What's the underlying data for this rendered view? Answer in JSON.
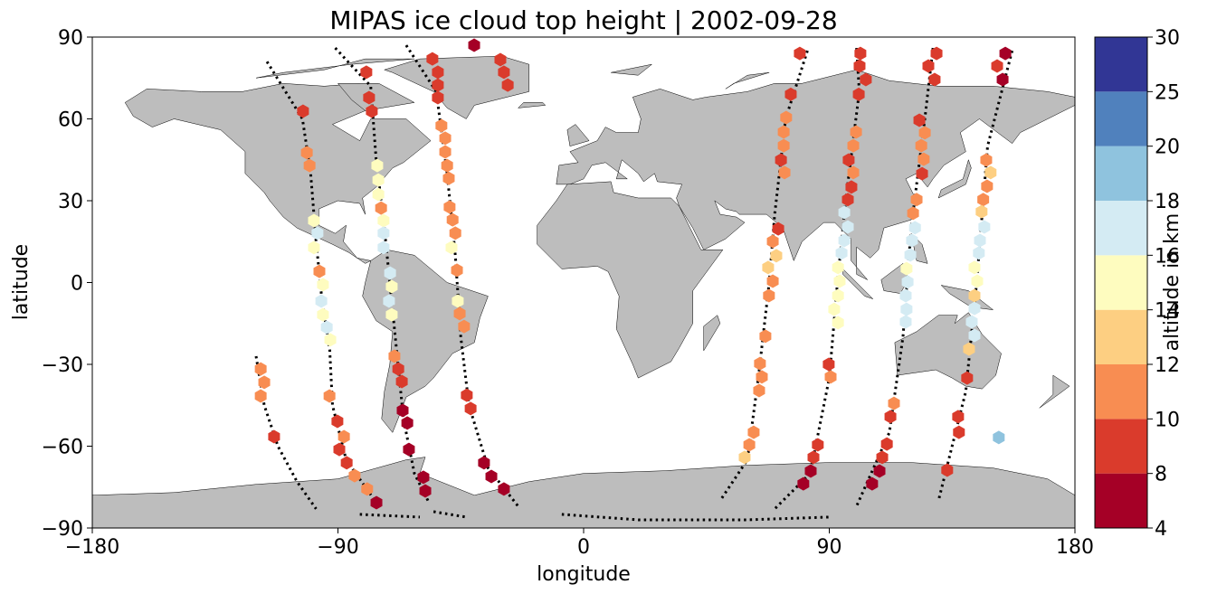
{
  "chart_data": {
    "type": "scatter",
    "title": "MIPAS ice cloud top height | 2002-09-28",
    "x_label": "longitude",
    "y_label": "latitude",
    "xlim": [
      -180,
      180
    ],
    "ylim": [
      -90,
      90
    ],
    "xticks": [
      {
        "value": -180,
        "label": "−180"
      },
      {
        "value": -90,
        "label": "−90"
      },
      0,
      90,
      180
    ],
    "yticks": [
      {
        "value": -90,
        "label": "−90"
      },
      {
        "value": -60,
        "label": "−60"
      },
      {
        "value": -30,
        "label": "−30"
      },
      0,
      30,
      60,
      90
    ],
    "colorbar": {
      "label": "altitude in km",
      "boundaries": [
        4,
        8,
        10,
        12,
        14,
        16,
        18,
        20,
        25,
        30
      ],
      "colors": [
        "#a50026",
        "#da3b2c",
        "#f88d52",
        "#fdcf82",
        "#fefcbf",
        "#d4ebf3",
        "#8fc3de",
        "#5081bd",
        "#313695"
      ]
    },
    "tracks": [
      {
        "x": [
          -120,
          -117,
          -112,
          -105,
          -98
        ],
        "y": [
          -27,
          -45,
          -60,
          -73,
          -83
        ]
      },
      {
        "x": [
          -116,
          -103,
          -100,
          -98,
          -96,
          -93,
          -92,
          -87,
          -75
        ],
        "y": [
          81,
          60,
          40,
          15,
          -5,
          -25,
          -45,
          -65,
          -82
        ]
      },
      {
        "x": [
          -91,
          -78,
          -76,
          -73,
          -71,
          -68,
          -66,
          -62,
          -57
        ],
        "y": [
          86,
          72,
          45,
          20,
          0,
          -30,
          -50,
          -70,
          -80
        ]
      },
      {
        "x": [
          -65,
          -54,
          -50,
          -47,
          -45,
          -42,
          -35,
          -24
        ],
        "y": [
          87,
          70,
          40,
          10,
          -20,
          -45,
          -68,
          -82
        ]
      },
      {
        "x": [
          82,
          74,
          70,
          68,
          64,
          60,
          50
        ],
        "y": [
          85,
          60,
          25,
          0,
          -35,
          -65,
          -80
        ]
      },
      {
        "x": [
          100,
          101,
          96,
          93,
          90,
          83,
          70
        ],
        "y": [
          86,
          70,
          30,
          0,
          -35,
          -70,
          -83
        ]
      },
      {
        "x": [
          128,
          125,
          120,
          117,
          112,
          100
        ],
        "y": [
          86,
          60,
          20,
          -20,
          -55,
          -82
        ]
      },
      {
        "x": [
          157,
          148,
          144,
          140,
          130
        ],
        "y": [
          85,
          50,
          0,
          -40,
          -80
        ]
      },
      {
        "x": [
          -82,
          -60
        ],
        "y": [
          -85,
          -86
        ]
      },
      {
        "x": [
          -55,
          -43
        ],
        "y": [
          -84,
          -86
        ]
      },
      {
        "x": [
          -8,
          20,
          60,
          90
        ],
        "y": [
          -85,
          -87,
          -87,
          -86
        ]
      }
    ],
    "x": [
      -118.3,
      -117,
      -118.3,
      -113.4,
      -102.8,
      -101.4,
      -100.4,
      -98.8,
      -97.5,
      -98.8,
      -96.8,
      -95.5,
      -96.1,
      -95.5,
      -94.1,
      -92.8,
      -93.1,
      -90.2,
      -87.8,
      -89.5,
      -86.8,
      -83.9,
      -79.3,
      -75.9,
      -79.6,
      -78.6,
      -77.6,
      -75.6,
      -75.2,
      -75.2,
      -74.2,
      -73.3,
      -73.3,
      -73.3,
      -70.9,
      -70.3,
      -71.3,
      -70.3,
      -69.3,
      -67.9,
      -66.6,
      -66.3,
      -64.6,
      -64,
      -58.7,
      -58,
      -55.4,
      -53.4,
      -53.4,
      -53.4,
      -52.1,
      -50.7,
      -50.7,
      -50,
      -49.4,
      -49.1,
      -48,
      -47,
      -48.4,
      -46.4,
      -46.1,
      -45.4,
      -43.8,
      -42.8,
      -41.4,
      -36.5,
      -33.8,
      -29.2,
      -40.1,
      -30.5,
      -29.2,
      -27.8,
      79.2,
      75.9,
      74.2,
      73.3,
      73.3,
      72.3,
      73.6,
      71.3,
      69.3,
      70.6,
      67.6,
      69.3,
      67.9,
      66.6,
      64.6,
      65.3,
      64.3,
      62.3,
      60.7,
      59,
      101.4,
      101.1,
      103.4,
      100.8,
      99.8,
      98.8,
      97.1,
      98.8,
      98.1,
      96.8,
      95.5,
      96.8,
      95.5,
      94.5,
      93.2,
      93.8,
      93.2,
      91.8,
      93.2,
      89.8,
      90.5,
      85.8,
      84.2,
      83.2,
      80.5,
      129.3,
      126.3,
      128.6,
      123,
      125,
      123.7,
      124.6,
      124,
      122,
      120.7,
      121.4,
      120.3,
      119.7,
      118.3,
      118.7,
      118,
      118.3,
      118,
      113.7,
      112.4,
      111.1,
      109.4,
      108.4,
      105.7,
      154.5,
      151.5,
      153.5,
      147.5,
      149.1,
      147.8,
      146.4,
      145.8,
      146.8,
      145.2,
      144.8,
      143.2,
      144.2,
      143.2,
      143.2,
      142.2,
      143.2,
      141.2,
      140.5,
      137.2,
      137.5,
      133.2,
      152.1
    ],
    "y": [
      -31.7,
      -36.6,
      -41.6,
      -56.5,
      62.8,
      47.6,
      42.9,
      22.7,
      18.1,
      12.8,
      4.1,
      -0.8,
      -6.8,
      -11.8,
      -16.4,
      -21,
      -41.6,
      -50.9,
      -56.5,
      -61.2,
      -66.1,
      -70.8,
      -75.7,
      -80.7,
      77.1,
      67.8,
      62.8,
      42.9,
      37.6,
      32.3,
      27.3,
      22.7,
      18.1,
      12.8,
      3.5,
      -1.5,
      -6.8,
      -11.8,
      -27,
      -31.7,
      -36.3,
      -46.9,
      -51.5,
      -61.2,
      -71.4,
      -76.4,
      82,
      77.1,
      72.4,
      67.8,
      57.5,
      52.9,
      47.9,
      42.9,
      38.2,
      27.7,
      23,
      18.1,
      12.8,
      4.5,
      -6.8,
      -11.4,
      -16.1,
      -41.3,
      -46.2,
      -66.1,
      -71.1,
      -75.7,
      87,
      81.7,
      77.1,
      72.4,
      84,
      69,
      60.5,
      55.2,
      50.2,
      44.9,
      40.3,
      19.7,
      15.1,
      9.8,
      5.5,
      0.5,
      -4.8,
      -19.7,
      -29.7,
      -34.6,
      -39.6,
      -54.9,
      -59.5,
      -64.1,
      84,
      79.4,
      74.4,
      69,
      55.2,
      50.2,
      44.9,
      40.3,
      35,
      30.4,
      25.7,
      20.4,
      15.4,
      10.8,
      5.5,
      0.5,
      -4.8,
      -9.8,
      -14.7,
      -30,
      -34.6,
      -59.5,
      -64.1,
      -69.1,
      -73.8,
      84,
      79.4,
      74.4,
      59.5,
      54.9,
      50.2,
      45.2,
      39.9,
      30.4,
      25.4,
      20.1,
      15.4,
      10.1,
      5.1,
      0.2,
      -4.8,
      -9.8,
      -14.4,
      -44.3,
      -49.2,
      -59.2,
      -64.1,
      -69.1,
      -73.8,
      84,
      79.4,
      74.4,
      44.9,
      40.3,
      35.3,
      30.4,
      26,
      20.4,
      15.4,
      10.8,
      5.5,
      0.5,
      -4.8,
      -9.5,
      -14.4,
      -19.4,
      -24.4,
      -35,
      -49.2,
      -54.9,
      -68.8,
      -56.8
    ],
    "values": [
      11,
      11,
      11,
      9,
      9,
      11,
      11,
      15,
      17,
      15,
      11,
      15,
      17,
      15,
      17,
      15,
      11,
      9,
      11,
      9,
      9,
      11,
      11,
      7,
      9,
      9,
      9,
      15,
      15,
      15,
      11,
      15,
      17,
      17,
      17,
      15,
      17,
      15,
      11,
      9,
      9,
      7,
      7,
      7,
      7,
      7,
      9,
      9,
      9,
      9,
      11,
      11,
      11,
      11,
      11,
      11,
      11,
      11,
      15,
      11,
      15,
      11,
      11,
      9,
      9,
      7,
      7,
      7,
      7,
      9,
      9,
      9,
      9,
      9,
      11,
      11,
      11,
      9,
      11,
      9,
      11,
      13,
      13,
      11,
      11,
      11,
      11,
      11,
      11,
      11,
      11,
      13,
      9,
      9,
      9,
      9,
      11,
      11,
      9,
      11,
      9,
      9,
      17,
      17,
      17,
      17,
      15,
      15,
      15,
      15,
      15,
      9,
      11,
      9,
      9,
      7,
      7,
      9,
      9,
      9,
      9,
      11,
      11,
      11,
      9,
      11,
      11,
      17,
      17,
      17,
      15,
      17,
      17,
      17,
      17,
      11,
      9,
      9,
      9,
      7,
      7,
      7,
      9,
      7,
      11,
      13,
      11,
      11,
      13,
      17,
      17,
      17,
      15,
      15,
      13,
      17,
      17,
      17,
      13,
      9,
      9,
      9,
      9,
      19
    ]
  }
}
